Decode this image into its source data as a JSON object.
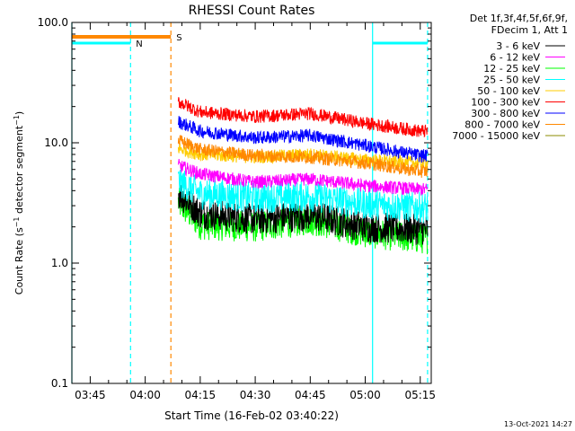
{
  "chart_data": {
    "type": "line",
    "title": "RHESSI Count Rates",
    "xlabel": "Start Time (16-Feb-02 03:40:22)",
    "ylabel_main": "Count Rate (s",
    "ylabel_sup": "−1",
    "ylabel_mid": " detector segment",
    "ylabel_tail": ")",
    "y_scale": "log",
    "ylim": [
      0.1,
      100
    ],
    "xlim": [
      "03:40",
      "05:18"
    ],
    "x_ticks": [
      "03:45",
      "04:00",
      "04:15",
      "04:30",
      "04:45",
      "05:00",
      "05:15"
    ],
    "y_ticks": [
      "0.1",
      "1.0",
      "10.0",
      "100.0"
    ],
    "legend": {
      "header": [
        "Det 1f,3f,4f,5f,6f,9f,",
        "FDecim 1, Att 1"
      ],
      "position": "right"
    },
    "series": [
      {
        "name": "3 - 6 keV",
        "color": "#000000",
        "values": [
          [
            "04:09",
            3.8
          ],
          [
            "04:15",
            2.6
          ],
          [
            "04:30",
            2.3
          ],
          [
            "04:45",
            2.5
          ],
          [
            "05:00",
            2.0
          ],
          [
            "05:15",
            1.9
          ]
        ]
      },
      {
        "name": "6 - 12 keV",
        "color": "#ff00ff",
        "values": [
          [
            "04:09",
            6.5
          ],
          [
            "04:15",
            5.5
          ],
          [
            "04:30",
            4.7
          ],
          [
            "04:45",
            5.0
          ],
          [
            "05:00",
            4.4
          ],
          [
            "05:15",
            4.1
          ]
        ]
      },
      {
        "name": "12 - 25 keV",
        "color": "#00ff00",
        "values": [
          [
            "04:09",
            3.2
          ],
          [
            "04:15",
            2.1
          ],
          [
            "04:30",
            2.0
          ],
          [
            "04:45",
            2.3
          ],
          [
            "05:00",
            1.8
          ],
          [
            "05:15",
            1.6
          ]
        ]
      },
      {
        "name": "25 - 50 keV",
        "color": "#00ffff",
        "values": [
          [
            "04:09",
            4.8
          ],
          [
            "04:15",
            3.8
          ],
          [
            "04:30",
            3.5
          ],
          [
            "04:45",
            3.6
          ],
          [
            "05:00",
            3.1
          ],
          [
            "05:15",
            2.9
          ]
        ]
      },
      {
        "name": "50 - 100 keV",
        "color": "#ffcc00",
        "values": [
          [
            "04:09",
            9.0
          ],
          [
            "04:15",
            8.0
          ],
          [
            "04:30",
            7.6
          ],
          [
            "04:45",
            8.0
          ],
          [
            "05:00",
            7.2
          ],
          [
            "05:15",
            6.8
          ]
        ]
      },
      {
        "name": "100 - 300 keV",
        "color": "#ff0000",
        "values": [
          [
            "04:09",
            22.0
          ],
          [
            "04:15",
            18.0
          ],
          [
            "04:30",
            16.5
          ],
          [
            "04:45",
            17.5
          ],
          [
            "05:00",
            14.5
          ],
          [
            "05:15",
            12.5
          ]
        ]
      },
      {
        "name": "300 - 800 keV",
        "color": "#0000ff",
        "values": [
          [
            "04:09",
            15.0
          ],
          [
            "04:15",
            12.5
          ],
          [
            "04:30",
            11.0
          ],
          [
            "04:45",
            11.5
          ],
          [
            "05:00",
            9.5
          ],
          [
            "05:15",
            7.8
          ]
        ]
      },
      {
        "name": "800 - 7000 keV",
        "color": "#ff8800",
        "values": [
          [
            "04:09",
            10.5
          ],
          [
            "04:15",
            8.8
          ],
          [
            "04:30",
            7.8
          ],
          [
            "04:45",
            7.6
          ],
          [
            "05:00",
            6.8
          ],
          [
            "05:15",
            5.8
          ]
        ]
      },
      {
        "name": "7000 - 15000 keV",
        "color": "#8b8b00",
        "values": []
      }
    ],
    "night_intervals": {
      "label": "N",
      "color": "#00ffff",
      "intervals": [
        [
          "03:40",
          "03:56"
        ],
        [
          "05:02",
          "05:17"
        ]
      ]
    },
    "saa_intervals": {
      "label": "S",
      "color": "#ff8800",
      "intervals": [
        [
          "03:40",
          "04:07"
        ]
      ]
    },
    "data_gap": [
      "04:07",
      "04:09"
    ]
  },
  "timestamp": "13-Oct-2021 14:27"
}
